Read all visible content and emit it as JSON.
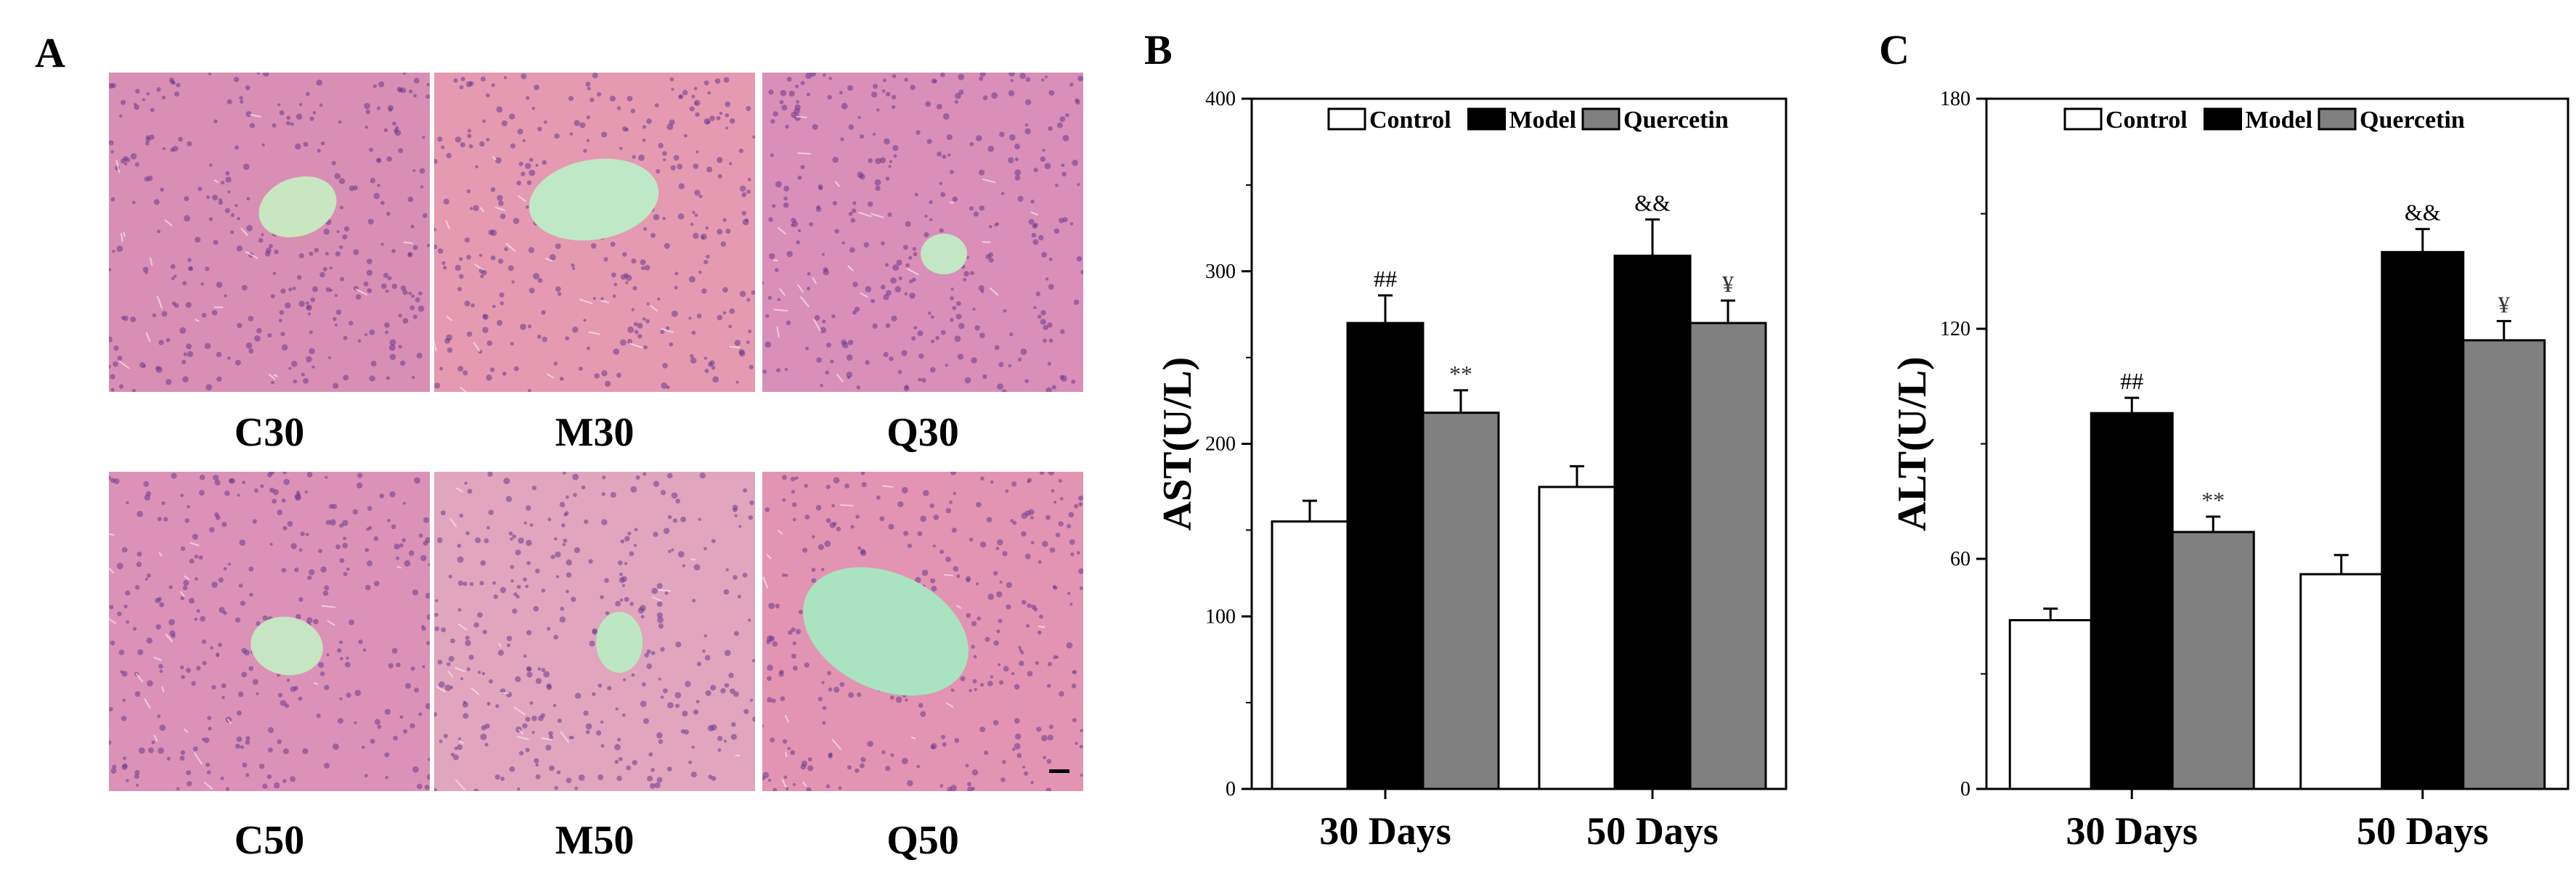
{
  "panels": {
    "a": "A",
    "b": "B",
    "c": "C"
  },
  "histology": {
    "tiles": [
      {
        "label": "C30",
        "tint": "#d98fb3",
        "vessel_color": "#c8e6c0"
      },
      {
        "label": "M30",
        "tint": "#e59ab1",
        "vessel_color": "#bfe8c6"
      },
      {
        "label": "Q30",
        "tint": "#d98fb8",
        "vessel_color": "#c3e6c4"
      },
      {
        "label": "C50",
        "tint": "#dc92b6",
        "vessel_color": "#c6e5c2"
      },
      {
        "label": "M50",
        "tint": "#e1a6bd",
        "vessel_color": "#bde7c3"
      },
      {
        "label": "Q50",
        "tint": "#e394b2",
        "vessel_color": "#a9e3c0"
      }
    ]
  },
  "chart_data": [
    {
      "type": "bar",
      "panel": "B",
      "ylabel": "AST(U/L)",
      "xlabel": "",
      "categories": [
        "30 Days",
        "50 Days"
      ],
      "ylim": [
        0,
        400
      ],
      "yticks": [
        0,
        100,
        200,
        300,
        400
      ],
      "legend_position": "top",
      "series": [
        {
          "name": "Control",
          "color": "#ffffff",
          "values": [
            155,
            175
          ],
          "errors": [
            12,
            12
          ]
        },
        {
          "name": "Model",
          "color": "#000000",
          "values": [
            270,
            309
          ],
          "errors": [
            16,
            21
          ]
        },
        {
          "name": "Quercetin",
          "color": "#808080",
          "values": [
            218,
            270
          ],
          "errors": [
            13,
            13
          ]
        }
      ],
      "annotations": [
        {
          "series": "Model",
          "category": "30 Days",
          "text": "##"
        },
        {
          "series": "Quercetin",
          "category": "30 Days",
          "text": "**"
        },
        {
          "series": "Model",
          "category": "50 Days",
          "text": "&&"
        },
        {
          "series": "Quercetin",
          "category": "50 Days",
          "text": "¥"
        }
      ]
    },
    {
      "type": "bar",
      "panel": "C",
      "ylabel": "ALT(U/L)",
      "xlabel": "",
      "categories": [
        "30 Days",
        "50 Days"
      ],
      "ylim": [
        0,
        180
      ],
      "yticks": [
        0,
        60,
        120,
        180
      ],
      "legend_position": "top",
      "series": [
        {
          "name": "Control",
          "color": "#ffffff",
          "values": [
            44,
            56
          ],
          "errors": [
            3,
            5
          ]
        },
        {
          "name": "Model",
          "color": "#000000",
          "values": [
            98,
            140
          ],
          "errors": [
            4,
            6
          ]
        },
        {
          "name": "Quercetin",
          "color": "#808080",
          "values": [
            67,
            117
          ],
          "errors": [
            4,
            5
          ]
        }
      ],
      "annotations": [
        {
          "series": "Model",
          "category": "30 Days",
          "text": "##"
        },
        {
          "series": "Quercetin",
          "category": "30 Days",
          "text": "**"
        },
        {
          "series": "Model",
          "category": "50 Days",
          "text": "&&"
        },
        {
          "series": "Quercetin",
          "category": "50 Days",
          "text": "¥"
        }
      ]
    }
  ]
}
